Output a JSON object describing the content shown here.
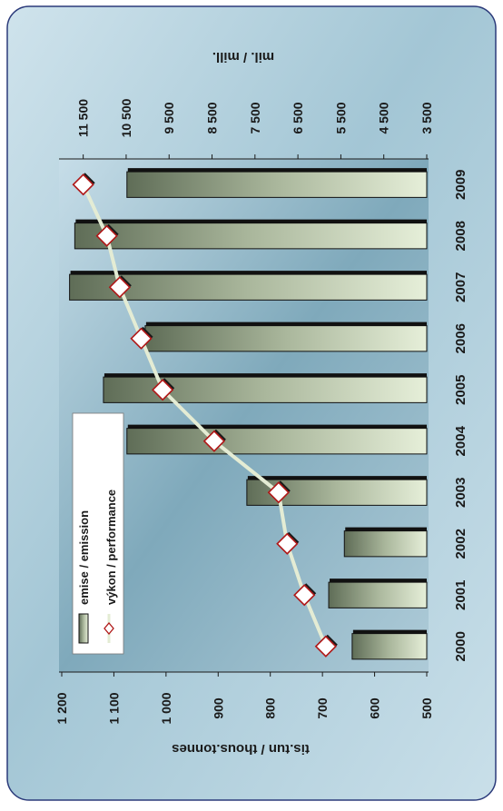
{
  "chart_data": {
    "type": "bar",
    "categories": [
      "2000",
      "2001",
      "2002",
      "2003",
      "2004",
      "2005",
      "2006",
      "2007",
      "2008",
      "2009"
    ],
    "series": [
      {
        "name": "emise / emission",
        "type": "bar",
        "axis": "left",
        "values": [
          643,
          688,
          658,
          845,
          1075,
          1120,
          1040,
          1185,
          1175,
          1075
        ]
      },
      {
        "name": "výkon / performance",
        "type": "line",
        "axis": "right",
        "values": [
          5850,
          6350,
          6750,
          6950,
          8450,
          9650,
          10150,
          10650,
          10950,
          11500
        ]
      }
    ],
    "left_axis": {
      "label": "tis.tun / thous.tonnes",
      "ticks": [
        "500",
        "600",
        "700",
        "800",
        "900",
        "1 000",
        "1 100",
        "1 200"
      ],
      "range": [
        500,
        1200
      ]
    },
    "right_axis": {
      "label": "mil. / mill.",
      "ticks": [
        "3 500",
        "4 500",
        "5 500",
        "6 500",
        "7 500",
        "8 500",
        "9 500",
        "10 500",
        "11 500"
      ],
      "range": [
        3500,
        12000
      ]
    },
    "legend_position": "top-left of plot",
    "grid": false,
    "colors": {
      "bar_dark": "#5f6d57",
      "bar_light": "#e6efd9",
      "bar_shadow": "#111111",
      "line": "#e4ecd4",
      "marker_edge": "#b01818",
      "marker_fill": "#ffffff",
      "panel": "#a9cad8"
    }
  }
}
